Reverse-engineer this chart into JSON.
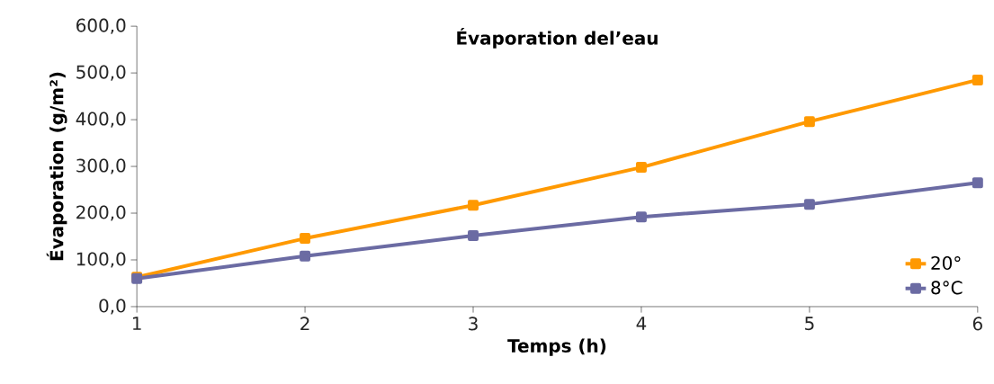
{
  "chart_data": {
    "type": "line",
    "title": "Évaporation del’eau",
    "xlabel": "Temps (h)",
    "ylabel": "Évaporation (g/m²)",
    "x": [
      1,
      2,
      3,
      4,
      5,
      6
    ],
    "series": [
      {
        "name": "20°",
        "color": "#ff9900",
        "values": [
          63,
          146,
          217,
          298,
          396,
          485
        ]
      },
      {
        "name": "8°C",
        "color": "#6b6ba3",
        "values": [
          60,
          108,
          152,
          192,
          219,
          265
        ]
      }
    ],
    "xlim": [
      1,
      6
    ],
    "xticks": [
      1,
      2,
      3,
      4,
      5,
      6
    ],
    "ylim": [
      0,
      600
    ],
    "yticks": [
      {
        "value": 0,
        "label": "0,0"
      },
      {
        "value": 100,
        "label": "100,0"
      },
      {
        "value": 200,
        "label": "200,0"
      },
      {
        "value": 300,
        "label": "300,0"
      },
      {
        "value": 400,
        "label": "400,0"
      },
      {
        "value": 500,
        "label": "500,0"
      },
      {
        "value": 600,
        "label": "600,0"
      }
    ],
    "grid": false,
    "legend": "bottom right",
    "marker": "square",
    "line_style": "solid"
  }
}
